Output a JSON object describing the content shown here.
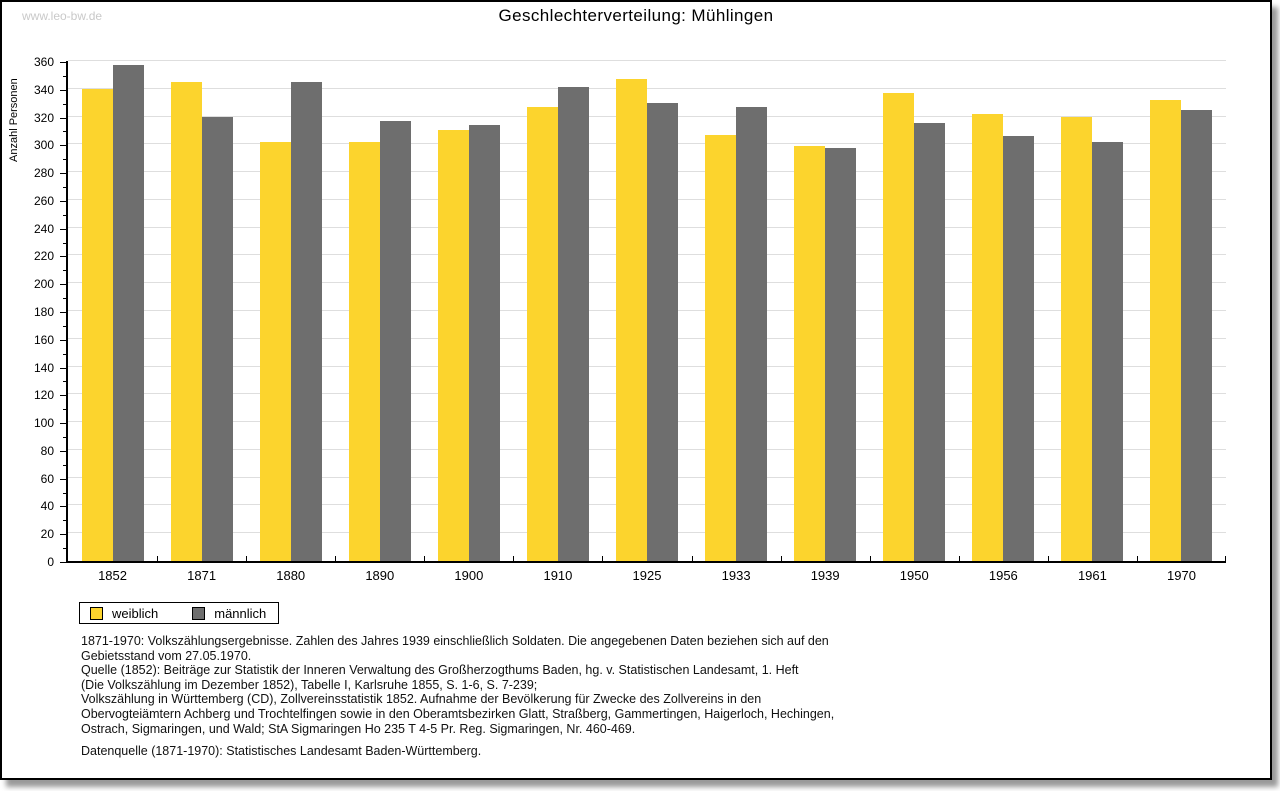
{
  "header": {
    "watermark": "www.leo-bw.de",
    "title": "Geschlechterverteilung: Mühlingen"
  },
  "chart_data": {
    "type": "bar",
    "title": "Geschlechterverteilung: Mühlingen",
    "xlabel": "",
    "ylabel": "Anzahl Personen",
    "ylim": [
      0,
      360
    ],
    "ytick_step": 20,
    "y_minor_step": 10,
    "grid": true,
    "legend_position": "bottom-left",
    "categories": [
      "1852",
      "1871",
      "1880",
      "1890",
      "1900",
      "1910",
      "1925",
      "1933",
      "1939",
      "1950",
      "1956",
      "1961",
      "1970"
    ],
    "series": [
      {
        "name": "weiblich",
        "color": "#FCD42D",
        "values": [
          340,
          345,
          302,
          302,
          310,
          327,
          347,
          307,
          299,
          337,
          322,
          320,
          332
        ]
      },
      {
        "name": "männlich",
        "color": "#6E6E6E",
        "values": [
          357,
          320,
          345,
          317,
          314,
          341,
          330,
          327,
          297,
          315,
          306,
          302,
          325
        ]
      }
    ]
  },
  "legend": {
    "items": [
      {
        "label": "weiblich",
        "color": "#FCD42D"
      },
      {
        "label": "männlich",
        "color": "#6E6E6E"
      }
    ]
  },
  "footnotes": {
    "lines": [
      "1871-1970: Volkszählungsergebnisse. Zahlen des Jahres 1939 einschließlich Soldaten. Die angegebenen Daten beziehen sich auf den",
      "Gebietsstand vom 27.05.1970.",
      "Quelle (1852): Beiträge zur Statistik der Inneren Verwaltung des Großherzogthums Baden, hg. v. Statistischen Landesamt, 1. Heft",
      "(Die Volkszählung im Dezember 1852), Tabelle I, Karlsruhe 1855, S. 1-6, S. 7-239;",
      "Volkszählung in Württemberg (CD), Zollvereinsstatistik 1852. Aufnahme der Bevölkerung für Zwecke des Zollvereins in den",
      "Obervogteiämtern Achberg und Trochtelfingen sowie in den Oberamtsbezirken Glatt, Straßberg, Gammertingen, Haigerloch, Hechingen,",
      "Ostrach, Sigmaringen, und Wald; StA Sigmaringen Ho 235 T 4-5 Pr. Reg. Sigmaringen, Nr. 460-469."
    ],
    "datasource": "Datenquelle (1871-1970): Statistisches Landesamt Baden-Württemberg."
  },
  "colors": {
    "bar_female": "#FCD42D",
    "bar_male": "#6E6E6E",
    "gridline": "#DEDEDE",
    "axis": "#000000",
    "watermark": "#C9C9C9",
    "background": "#FFFFFF",
    "border": "#000000"
  }
}
